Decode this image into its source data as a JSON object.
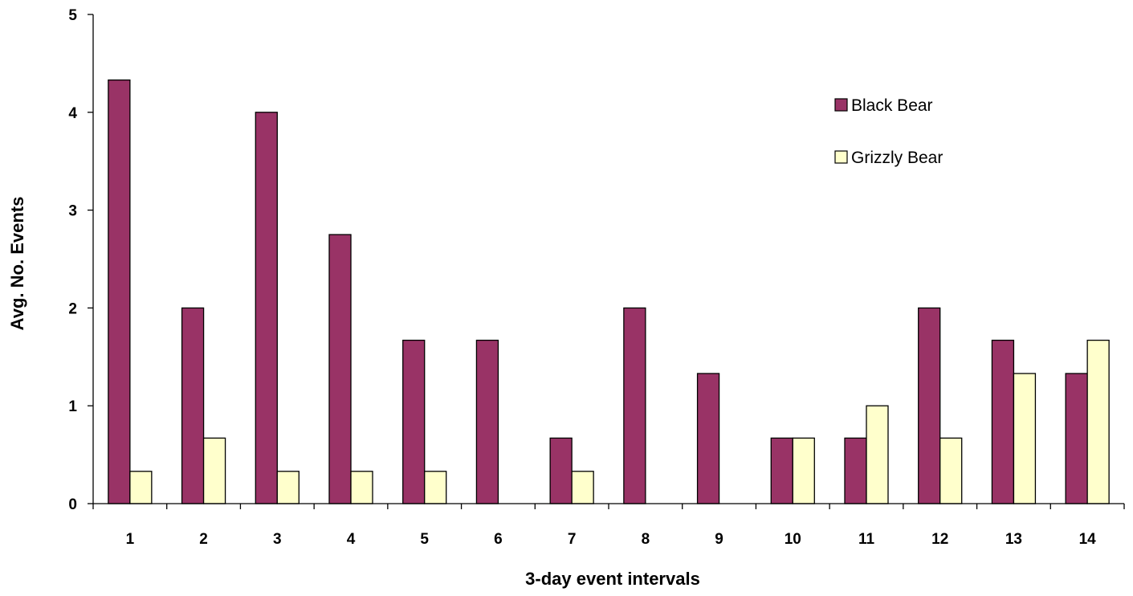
{
  "chart_data": {
    "type": "bar",
    "title": "",
    "xlabel": "3-day event intervals",
    "ylabel": "Avg. No. Events",
    "categories": [
      "1",
      "2",
      "3",
      "4",
      "5",
      "6",
      "7",
      "8",
      "9",
      "10",
      "11",
      "12",
      "13",
      "14"
    ],
    "series": [
      {
        "name": "Black Bear",
        "color": "#993366",
        "values": [
          4.33,
          2.0,
          4.0,
          2.75,
          1.67,
          1.67,
          0.67,
          2.0,
          1.33,
          0.67,
          0.67,
          2.0,
          1.67,
          1.33
        ]
      },
      {
        "name": "Grizzly Bear",
        "color": "#FFFFCC",
        "values": [
          0.33,
          0.67,
          0.33,
          0.33,
          0.33,
          0,
          0.33,
          0,
          0,
          0.67,
          1.0,
          0.67,
          1.33,
          1.67
        ]
      }
    ],
    "ylim": [
      0,
      5
    ],
    "yticks": [
      0,
      1,
      2,
      3,
      4,
      5
    ],
    "grid": false,
    "legend_position": "top-right"
  }
}
